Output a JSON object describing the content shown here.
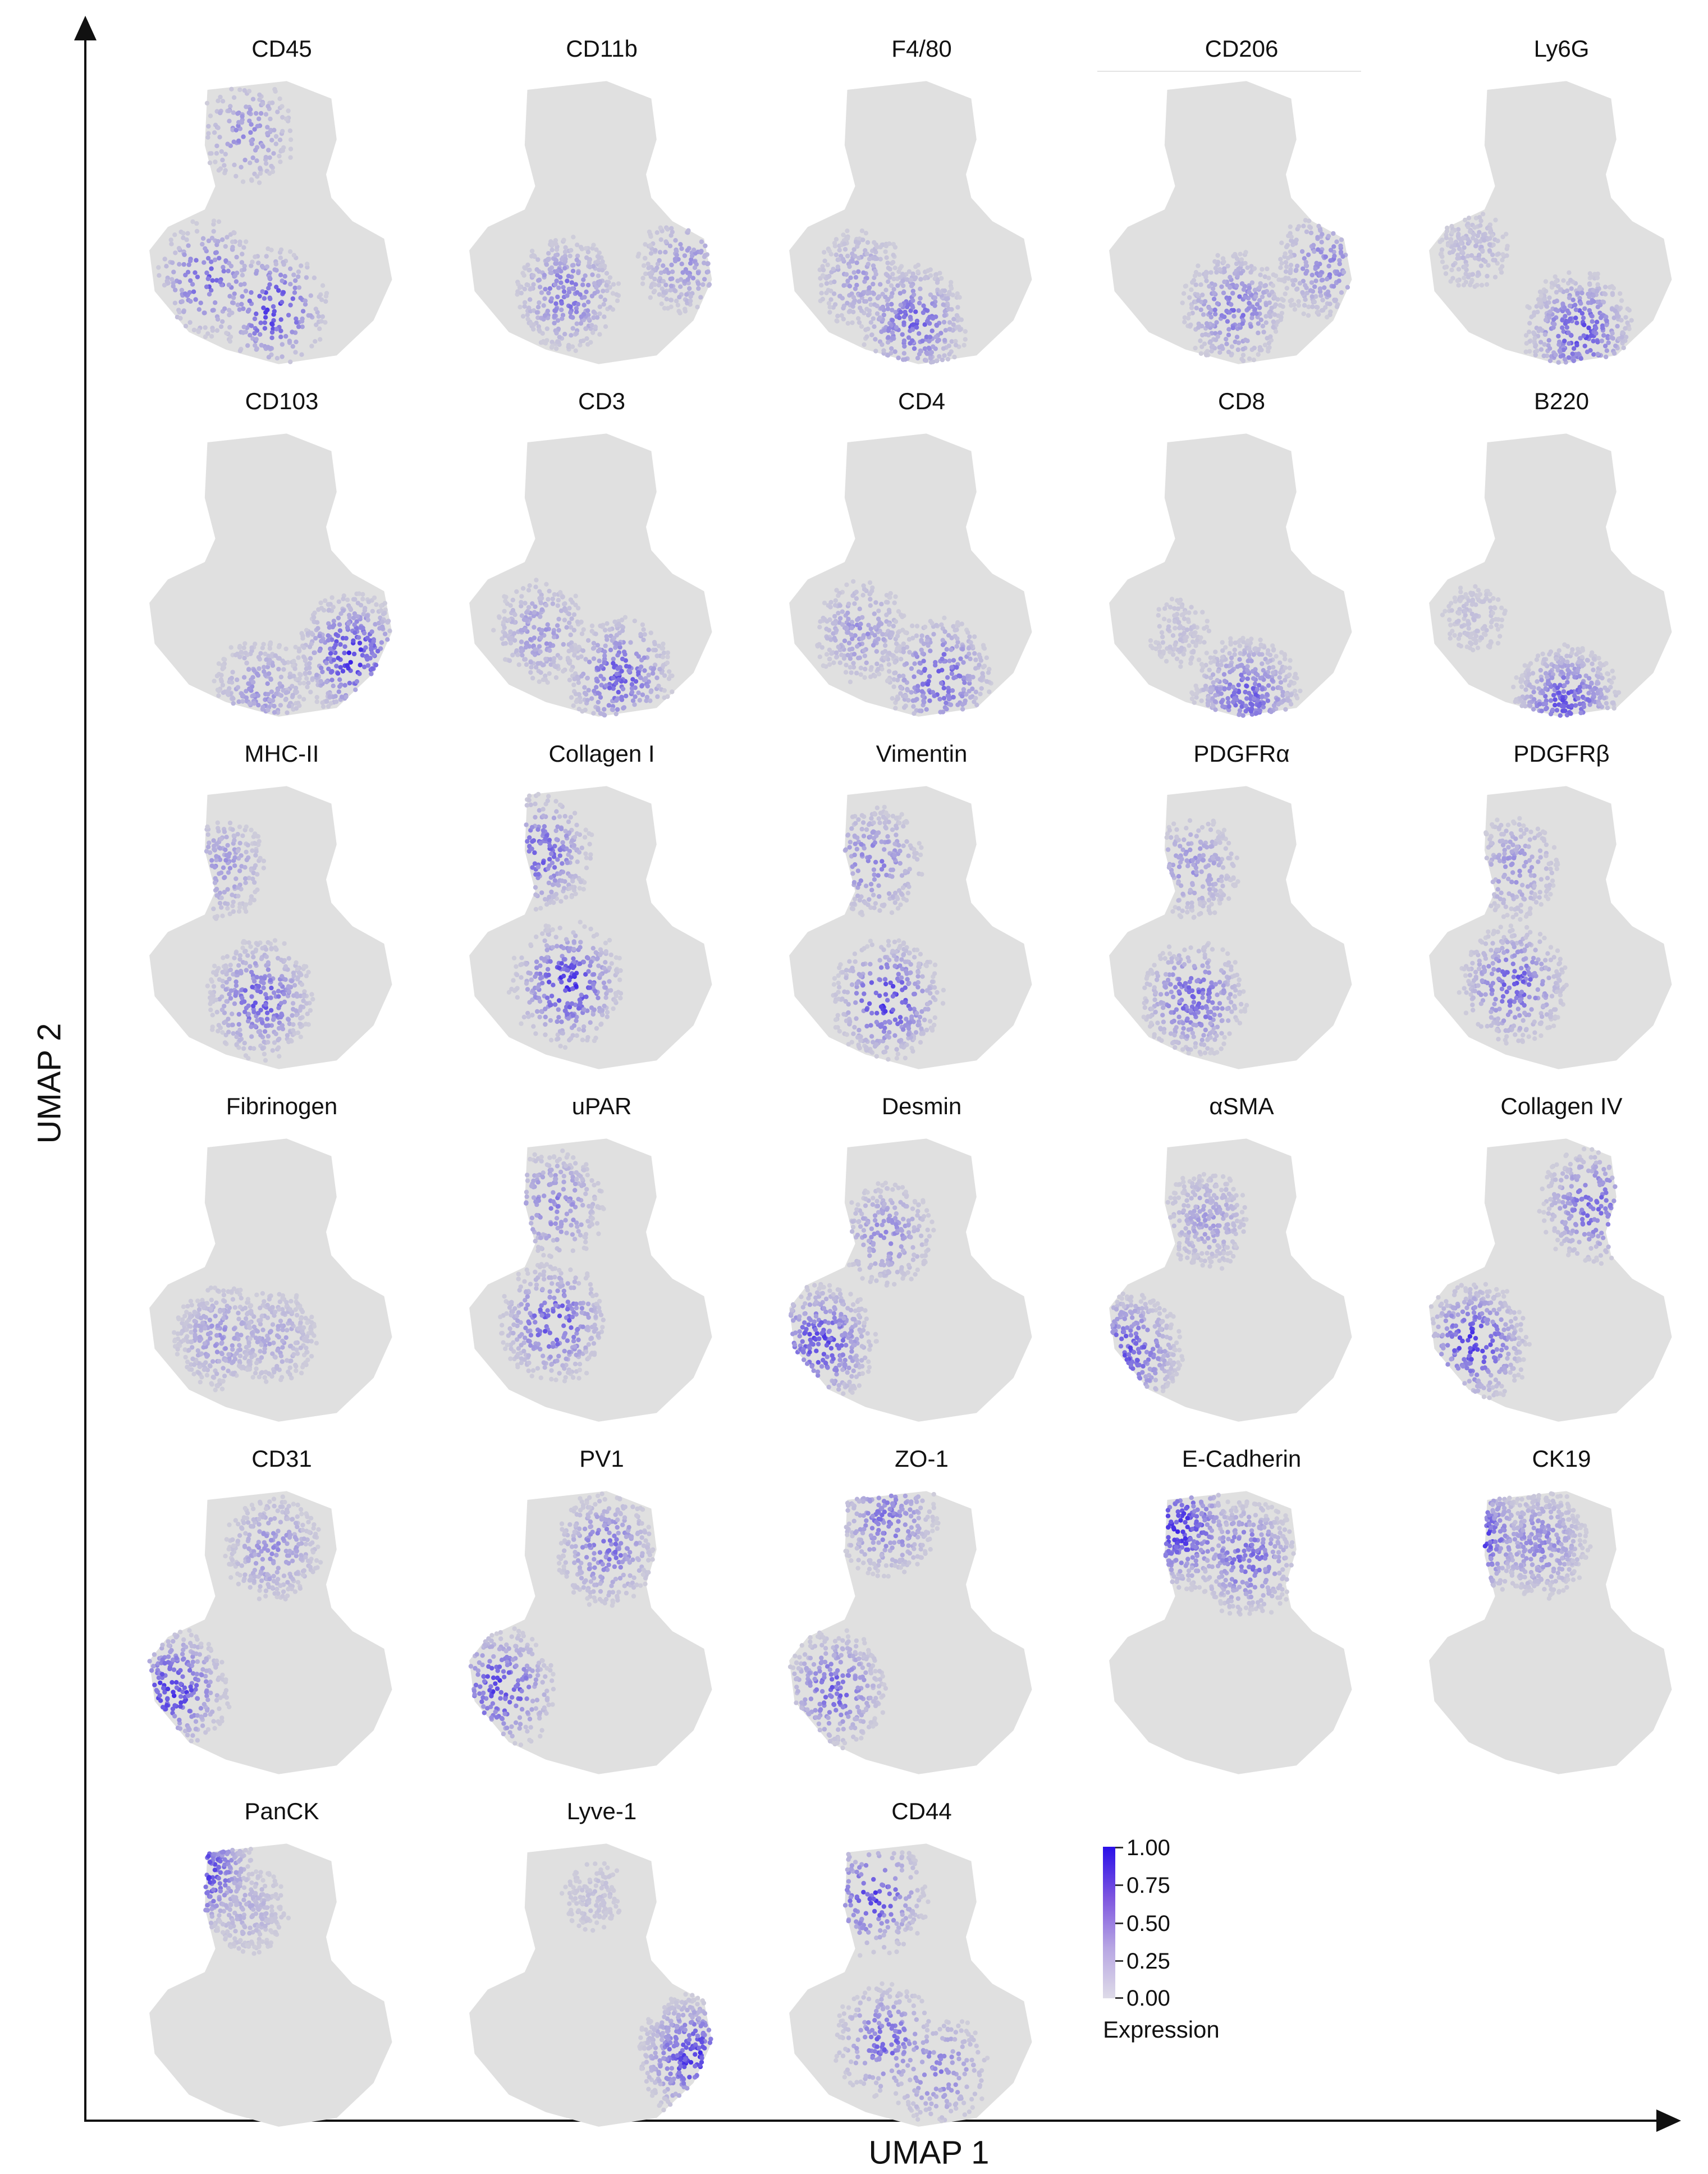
{
  "chart_data": {
    "type": "scatter",
    "title": "",
    "xlabel": "UMAP 1",
    "ylabel": "UMAP 2",
    "colorbar": {
      "title": "Expression",
      "ticks": [
        "1.00",
        "0.75",
        "0.50",
        "0.25",
        "0.00"
      ],
      "range": [
        0,
        1
      ],
      "low_color": "#d9d9d9",
      "high_color": "#2a10e8"
    },
    "panels": [
      {
        "marker": "CD45",
        "hotspots": [
          {
            "x": 0.5,
            "y": 0.2,
            "level": 0.9
          },
          {
            "x": 0.25,
            "y": 0.3,
            "level": 0.7
          },
          {
            "x": 0.4,
            "y": 0.8,
            "level": 0.45
          }
        ]
      },
      {
        "marker": "CD11b",
        "hotspots": [
          {
            "x": 0.4,
            "y": 0.25,
            "level": 0.6
          },
          {
            "x": 0.85,
            "y": 0.35,
            "level": 0.4
          }
        ]
      },
      {
        "marker": "F4/80",
        "hotspots": [
          {
            "x": 0.5,
            "y": 0.15,
            "level": 0.7
          },
          {
            "x": 0.3,
            "y": 0.3,
            "level": 0.35
          }
        ]
      },
      {
        "marker": "CD206",
        "hotspots": [
          {
            "x": 0.5,
            "y": 0.2,
            "level": 0.6
          },
          {
            "x": 0.85,
            "y": 0.35,
            "level": 0.5
          }
        ]
      },
      {
        "marker": "Ly6G",
        "hotspots": [
          {
            "x": 0.6,
            "y": 0.12,
            "level": 0.8
          },
          {
            "x": 0.2,
            "y": 0.4,
            "level": 0.2
          }
        ]
      },
      {
        "marker": "CD103",
        "hotspots": [
          {
            "x": 0.8,
            "y": 0.22,
            "level": 0.95
          },
          {
            "x": 0.45,
            "y": 0.1,
            "level": 0.4
          }
        ]
      },
      {
        "marker": "CD3",
        "hotspots": [
          {
            "x": 0.6,
            "y": 0.15,
            "level": 0.75
          },
          {
            "x": 0.3,
            "y": 0.3,
            "level": 0.4
          }
        ]
      },
      {
        "marker": "CD4",
        "hotspots": [
          {
            "x": 0.6,
            "y": 0.15,
            "level": 0.75
          },
          {
            "x": 0.3,
            "y": 0.3,
            "level": 0.4
          }
        ]
      },
      {
        "marker": "CD8",
        "hotspots": [
          {
            "x": 0.55,
            "y": 0.08,
            "level": 0.7
          },
          {
            "x": 0.3,
            "y": 0.3,
            "level": 0.15
          }
        ]
      },
      {
        "marker": "B220",
        "hotspots": [
          {
            "x": 0.55,
            "y": 0.05,
            "level": 0.8
          },
          {
            "x": 0.2,
            "y": 0.35,
            "level": 0.15
          }
        ]
      },
      {
        "marker": "MHC-II",
        "hotspots": [
          {
            "x": 0.45,
            "y": 0.25,
            "level": 0.75
          },
          {
            "x": 0.3,
            "y": 0.7,
            "level": 0.4
          }
        ]
      },
      {
        "marker": "Collagen I",
        "hotspots": [
          {
            "x": 0.4,
            "y": 0.3,
            "level": 0.95
          },
          {
            "x": 0.3,
            "y": 0.75,
            "level": 0.7
          }
        ]
      },
      {
        "marker": "Vimentin",
        "hotspots": [
          {
            "x": 0.4,
            "y": 0.25,
            "level": 0.9
          },
          {
            "x": 0.35,
            "y": 0.72,
            "level": 0.55
          }
        ]
      },
      {
        "marker": "PDGFRα",
        "hotspots": [
          {
            "x": 0.35,
            "y": 0.25,
            "level": 0.7
          },
          {
            "x": 0.35,
            "y": 0.7,
            "level": 0.4
          }
        ]
      },
      {
        "marker": "PDGFRβ",
        "hotspots": [
          {
            "x": 0.35,
            "y": 0.3,
            "level": 0.75
          },
          {
            "x": 0.35,
            "y": 0.7,
            "level": 0.4
          }
        ]
      },
      {
        "marker": "Fibrinogen",
        "hotspots": [
          {
            "x": 0.3,
            "y": 0.3,
            "level": 0.4
          },
          {
            "x": 0.5,
            "y": 0.3,
            "level": 0.3
          }
        ]
      },
      {
        "marker": "uPAR",
        "hotspots": [
          {
            "x": 0.35,
            "y": 0.35,
            "level": 0.8
          },
          {
            "x": 0.35,
            "y": 0.75,
            "level": 0.55
          }
        ]
      },
      {
        "marker": "Desmin",
        "hotspots": [
          {
            "x": 0.15,
            "y": 0.28,
            "level": 0.85
          },
          {
            "x": 0.4,
            "y": 0.65,
            "level": 0.45
          }
        ]
      },
      {
        "marker": "αSMA",
        "hotspots": [
          {
            "x": 0.1,
            "y": 0.25,
            "level": 0.8
          },
          {
            "x": 0.4,
            "y": 0.7,
            "level": 0.35
          }
        ]
      },
      {
        "marker": "Collagen IV",
        "hotspots": [
          {
            "x": 0.2,
            "y": 0.28,
            "level": 0.9
          },
          {
            "x": 0.65,
            "y": 0.75,
            "level": 0.7
          }
        ]
      },
      {
        "marker": "CD31",
        "hotspots": [
          {
            "x": 0.12,
            "y": 0.3,
            "level": 0.95
          },
          {
            "x": 0.5,
            "y": 0.78,
            "level": 0.45
          }
        ]
      },
      {
        "marker": "PV1",
        "hotspots": [
          {
            "x": 0.15,
            "y": 0.3,
            "level": 0.9
          },
          {
            "x": 0.55,
            "y": 0.78,
            "level": 0.6
          }
        ]
      },
      {
        "marker": "ZO-1",
        "hotspots": [
          {
            "x": 0.2,
            "y": 0.3,
            "level": 0.7
          },
          {
            "x": 0.4,
            "y": 0.88,
            "level": 0.6
          }
        ]
      },
      {
        "marker": "E-Cadherin",
        "hotspots": [
          {
            "x": 0.3,
            "y": 0.85,
            "level": 0.95
          },
          {
            "x": 0.55,
            "y": 0.75,
            "level": 0.7
          }
        ]
      },
      {
        "marker": "CK19",
        "hotspots": [
          {
            "x": 0.2,
            "y": 0.82,
            "level": 0.95
          },
          {
            "x": 0.45,
            "y": 0.8,
            "level": 0.5
          }
        ]
      },
      {
        "marker": "PanCK",
        "hotspots": [
          {
            "x": 0.22,
            "y": 0.88,
            "level": 0.95
          },
          {
            "x": 0.4,
            "y": 0.75,
            "level": 0.25
          }
        ]
      },
      {
        "marker": "Lyve-1",
        "hotspots": [
          {
            "x": 0.88,
            "y": 0.25,
            "level": 0.95
          },
          {
            "x": 0.5,
            "y": 0.8,
            "level": 0.15
          }
        ]
      },
      {
        "marker": "CD44",
        "hotspots": [
          {
            "x": 0.35,
            "y": 0.8,
            "level": 0.85
          },
          {
            "x": 0.4,
            "y": 0.3,
            "level": 0.7
          },
          {
            "x": 0.6,
            "y": 0.2,
            "level": 0.55
          }
        ]
      }
    ]
  }
}
